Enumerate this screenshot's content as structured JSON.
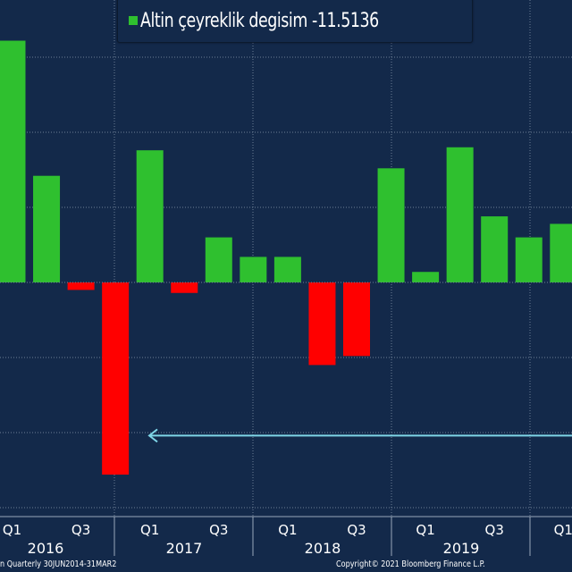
{
  "chart_data": {
    "type": "bar",
    "legend": {
      "label": "Altin çeyreklik degisim",
      "value": "-11.5136",
      "placement": "top-center"
    },
    "categories": [
      "2016 Q1",
      "2016 Q2",
      "2016 Q3",
      "2016 Q4",
      "2017 Q1",
      "2017 Q2",
      "2017 Q3",
      "2017 Q4",
      "2018 Q1",
      "2018 Q2",
      "2018 Q3",
      "2018 Q4",
      "2019 Q1",
      "2019 Q2",
      "2019 Q3",
      "2019 Q4",
      "2020 Q1"
    ],
    "values": [
      16.1,
      7.1,
      -0.5,
      -12.8,
      8.8,
      -0.7,
      3.0,
      1.7,
      1.7,
      -5.5,
      -4.9,
      7.6,
      0.7,
      9.0,
      4.4,
      3.0,
      3.9
    ],
    "ylim": [
      -15.5,
      18.9
    ],
    "grid": true,
    "quarter_ticks": [
      "Q1",
      "Q3",
      "Q1",
      "Q3",
      "Q1",
      "Q3",
      "Q1",
      "Q3",
      "Q1"
    ],
    "years": [
      "2016",
      "2017",
      "2018",
      "2019"
    ],
    "reference_arrow_level": -10.2,
    "colors": {
      "positive": "#2fc02f",
      "negative": "#ff0000",
      "background": "#13294a",
      "arrow": "#7fd6e8"
    }
  },
  "footer": {
    "left": "n  Quarterly 30JUN2014-31MAR2",
    "right": "Copyright© 2021 Bloomberg Finance L.P."
  }
}
